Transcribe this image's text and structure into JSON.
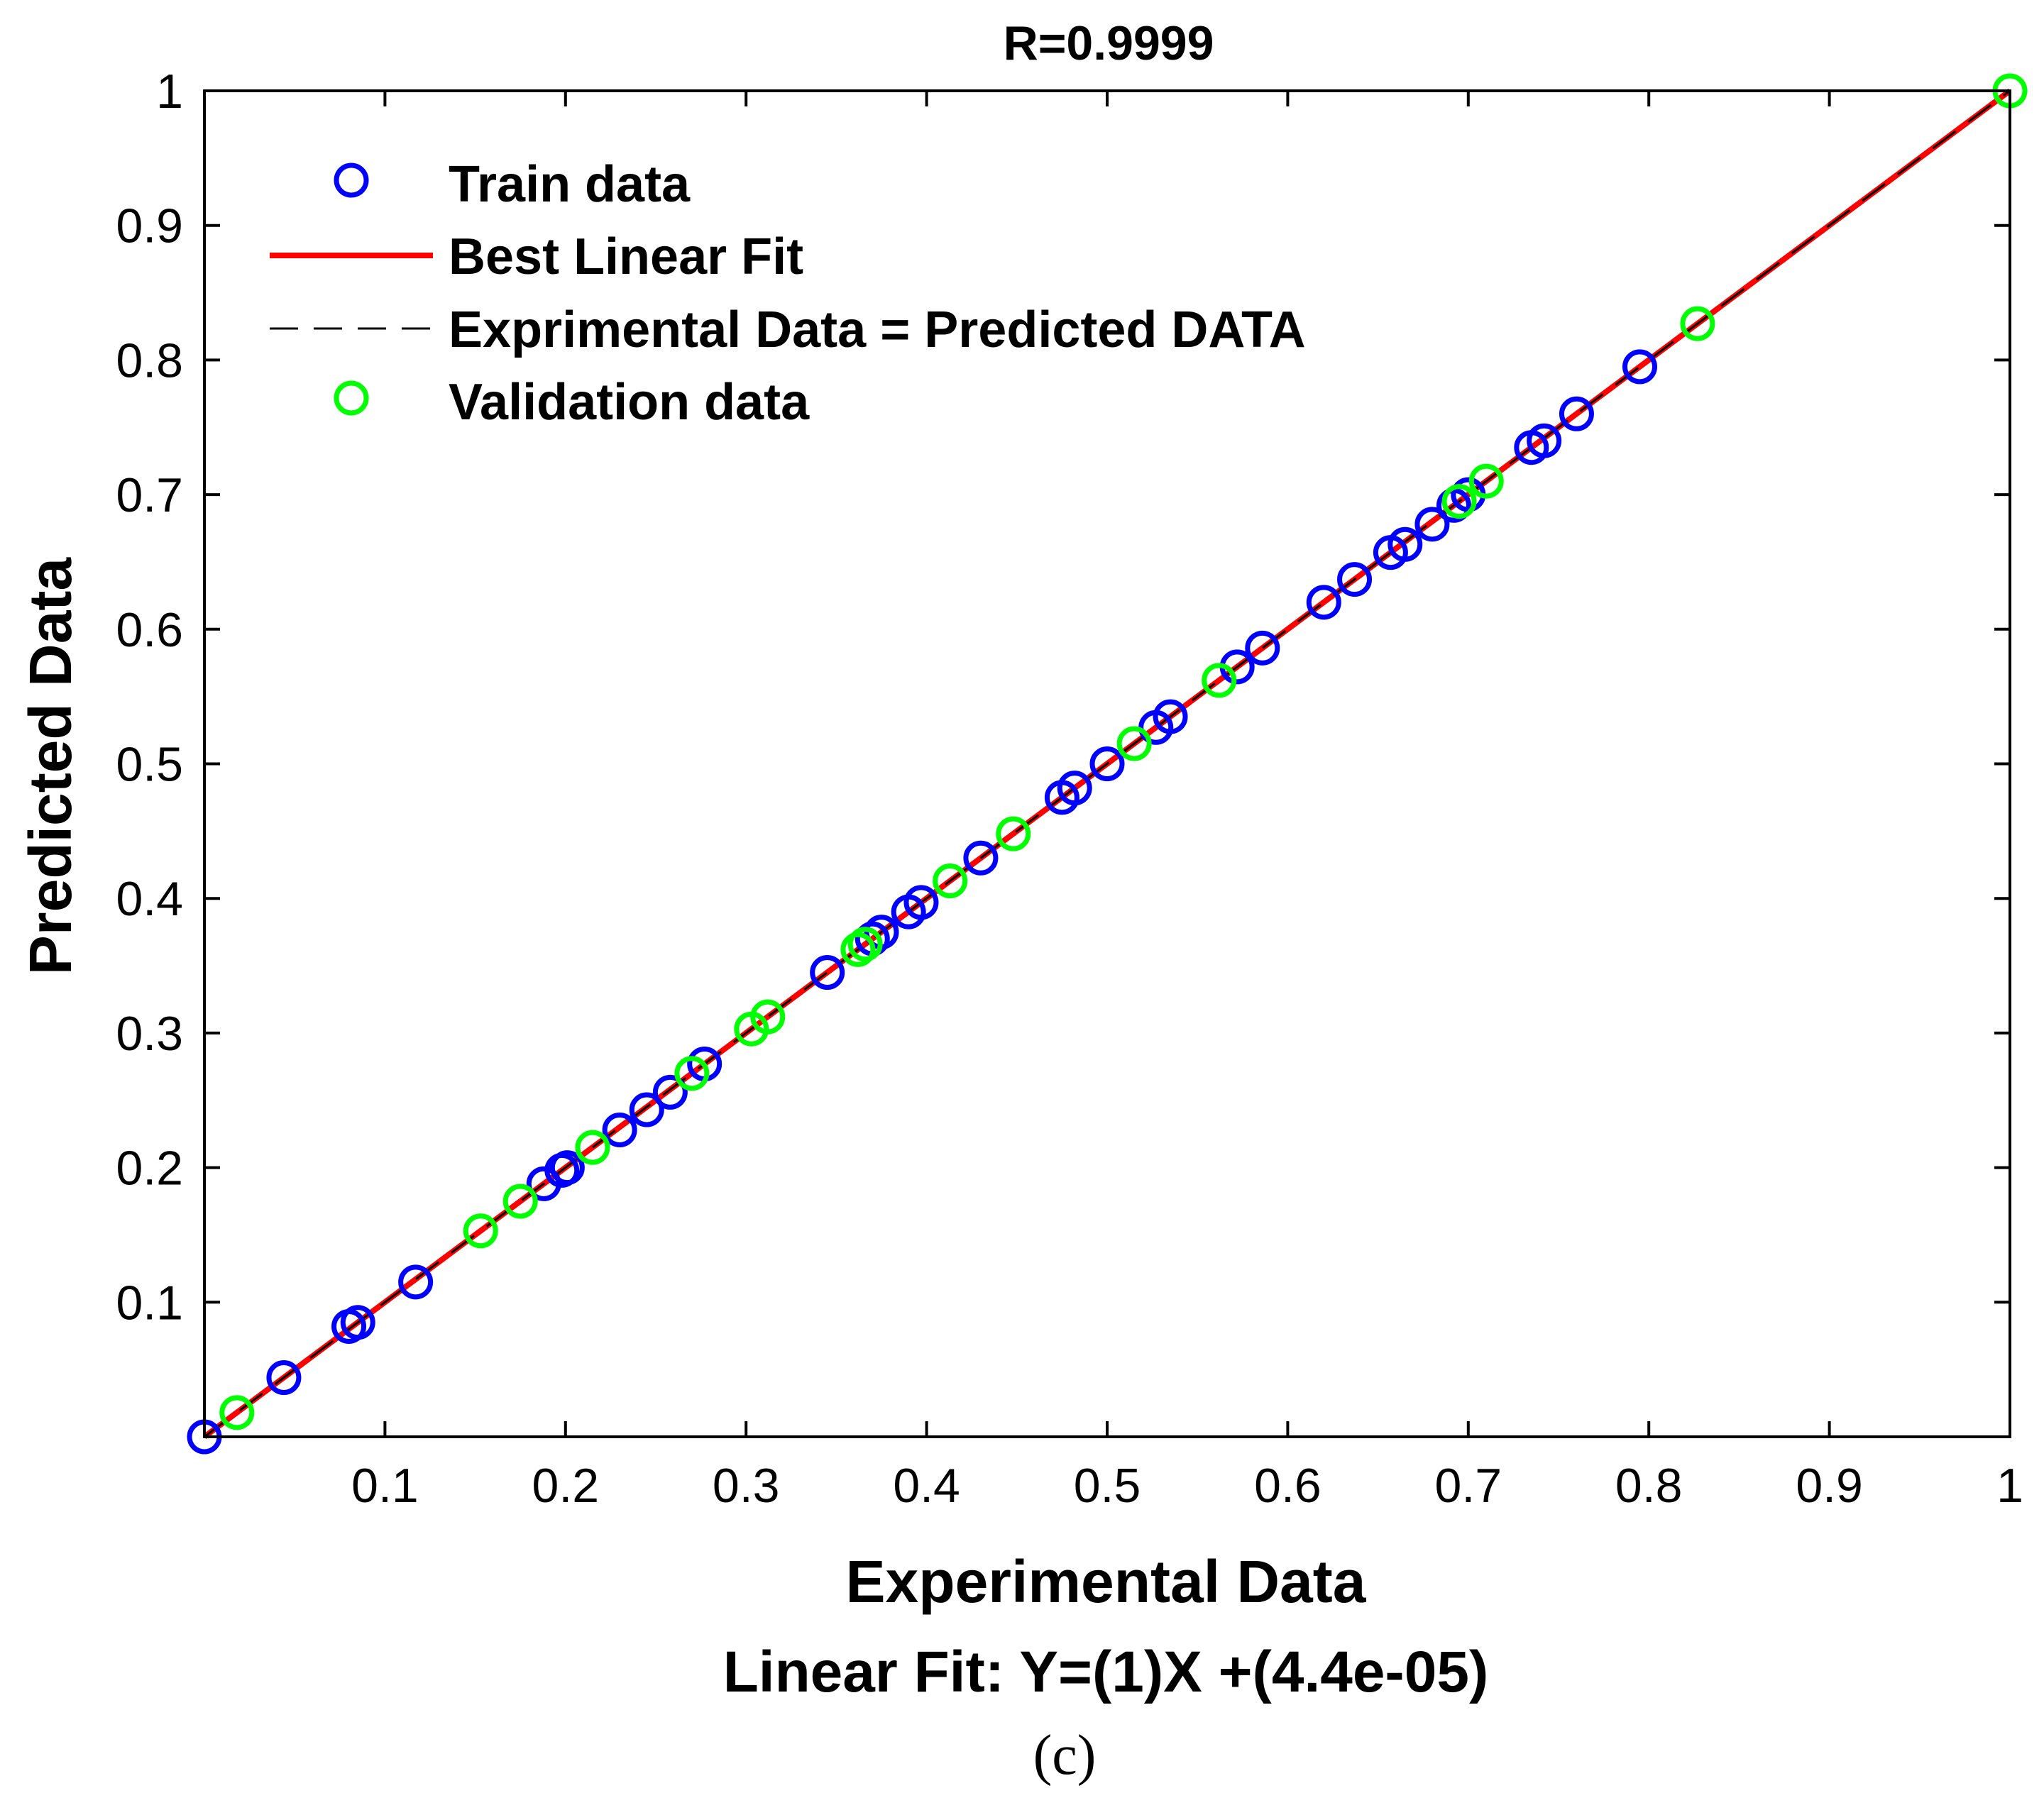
{
  "chart_data": {
    "type": "scatter",
    "title": "R=0.9999",
    "xlabel": "Experimental Data",
    "subtitle_below": "Linear Fit: Y=(1)X +(4.4e-05)",
    "caption": "(c)",
    "ylabel": "Predicted Data",
    "xlim": [
      0,
      1
    ],
    "ylim": [
      0,
      1
    ],
    "x_ticks": [
      0.1,
      0.2,
      0.3,
      0.4,
      0.5,
      0.6,
      0.7,
      0.8,
      0.9,
      1
    ],
    "x_tick_labels": [
      "0.1",
      "0.2",
      "0.3",
      "0.4",
      "0.5",
      "0.6",
      "0.7",
      "0.8",
      "0.9",
      "1"
    ],
    "y_ticks": [
      0.1,
      0.2,
      0.3,
      0.4,
      0.5,
      0.6,
      0.7,
      0.8,
      0.9,
      1
    ],
    "y_tick_labels": [
      "0.1",
      "0.2",
      "0.3",
      "0.4",
      "0.5",
      "0.6",
      "0.7",
      "0.8",
      "0.9",
      "1"
    ],
    "grid": false,
    "legend_position": "top-left",
    "legend": [
      {
        "label": "Train data",
        "style": "circle",
        "color": "#0000ff"
      },
      {
        "label": "Best Linear Fit",
        "style": "solid-line",
        "color": "#ff0000"
      },
      {
        "label": "Exprimental Data = Predicted DATA",
        "style": "dashed-line",
        "color": "#000000"
      },
      {
        "label": "Validation data",
        "style": "circle",
        "color": "#00ff00"
      }
    ],
    "fit": {
      "slope": 1,
      "intercept": 4.4e-05
    },
    "series": [
      {
        "name": "Train data",
        "color": "#0000ff",
        "points": [
          [
            0.0,
            0.0
          ],
          [
            0.044,
            0.044
          ],
          [
            0.08,
            0.082
          ],
          [
            0.085,
            0.085
          ],
          [
            0.117,
            0.115
          ],
          [
            0.188,
            0.188
          ],
          [
            0.198,
            0.198
          ],
          [
            0.201,
            0.2
          ],
          [
            0.23,
            0.228
          ],
          [
            0.245,
            0.243
          ],
          [
            0.258,
            0.256
          ],
          [
            0.277,
            0.277
          ],
          [
            0.345,
            0.345
          ],
          [
            0.37,
            0.37
          ],
          [
            0.375,
            0.375
          ],
          [
            0.39,
            0.39
          ],
          [
            0.397,
            0.397
          ],
          [
            0.43,
            0.43
          ],
          [
            0.475,
            0.475
          ],
          [
            0.482,
            0.482
          ],
          [
            0.5,
            0.5
          ],
          [
            0.527,
            0.527
          ],
          [
            0.535,
            0.535
          ],
          [
            0.572,
            0.572
          ],
          [
            0.586,
            0.586
          ],
          [
            0.62,
            0.62
          ],
          [
            0.637,
            0.637
          ],
          [
            0.657,
            0.657
          ],
          [
            0.665,
            0.663
          ],
          [
            0.68,
            0.678
          ],
          [
            0.692,
            0.692
          ],
          [
            0.7,
            0.7
          ],
          [
            0.735,
            0.735
          ],
          [
            0.742,
            0.74
          ],
          [
            0.76,
            0.76
          ],
          [
            0.795,
            0.795
          ]
        ]
      },
      {
        "name": "Validation data",
        "color": "#00ff00",
        "points": [
          [
            0.018,
            0.018
          ],
          [
            0.153,
            0.153
          ],
          [
            0.175,
            0.175
          ],
          [
            0.215,
            0.215
          ],
          [
            0.27,
            0.27
          ],
          [
            0.303,
            0.303
          ],
          [
            0.312,
            0.312
          ],
          [
            0.362,
            0.362
          ],
          [
            0.366,
            0.366
          ],
          [
            0.413,
            0.413
          ],
          [
            0.448,
            0.448
          ],
          [
            0.515,
            0.515
          ],
          [
            0.562,
            0.562
          ],
          [
            0.695,
            0.695
          ],
          [
            0.71,
            0.71
          ],
          [
            0.827,
            0.827
          ],
          [
            1.0,
            1.0
          ]
        ]
      }
    ]
  }
}
